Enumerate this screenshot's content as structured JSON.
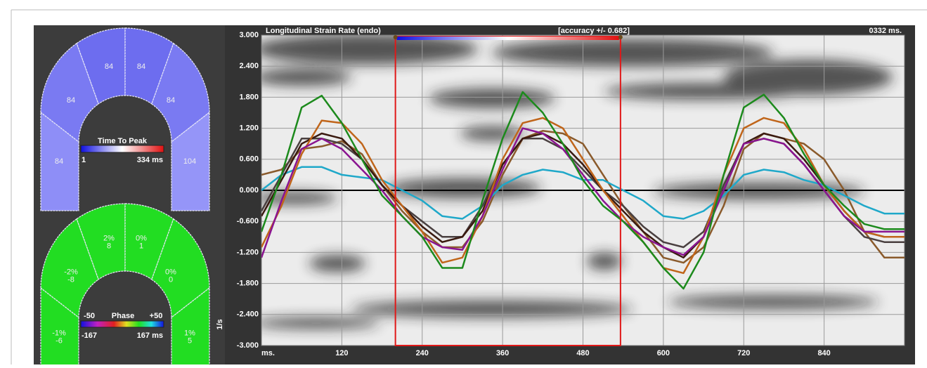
{
  "chart_data": {
    "type": "line",
    "title": "Longitudinal Strain Rate (endo)",
    "annotation": "[accuracy +/- 0.682]",
    "time": "0332 ms.",
    "y_label": "1/s",
    "x": [
      0,
      30,
      60,
      90,
      120,
      150,
      180,
      210,
      240,
      270,
      300,
      330,
      360,
      390,
      420,
      450,
      480,
      510,
      540,
      570,
      600,
      630,
      660,
      690,
      720,
      750,
      780,
      810,
      840,
      870,
      900,
      930,
      960
    ],
    "series": [
      {
        "color": "#8a5a2b",
        "values": [
          0.3,
          0.4,
          0.8,
          0.85,
          0.95,
          0.7,
          0.1,
          -0.4,
          -0.8,
          -1.1,
          -1.1,
          -0.6,
          0.3,
          1.0,
          1.15,
          1.1,
          0.9,
          0.3,
          -0.3,
          -0.8,
          -1.3,
          -1.4,
          -1.1,
          -0.3,
          0.8,
          1.1,
          1.0,
          0.9,
          0.6,
          0.0,
          -0.8,
          -1.3,
          -1.3
        ]
      },
      {
        "color": "#1fa8c9",
        "values": [
          0.0,
          0.3,
          0.45,
          0.45,
          0.3,
          0.25,
          0.2,
          0.0,
          -0.2,
          -0.5,
          -0.55,
          -0.3,
          0.1,
          0.3,
          0.4,
          0.35,
          0.2,
          0.2,
          0.0,
          -0.2,
          -0.5,
          -0.55,
          -0.4,
          -0.1,
          0.3,
          0.4,
          0.35,
          0.2,
          0.1,
          -0.1,
          -0.3,
          -0.45,
          -0.45
        ]
      },
      {
        "color": "#4a4040",
        "values": [
          -0.4,
          0.3,
          1.0,
          1.0,
          0.9,
          0.6,
          0.1,
          -0.3,
          -0.6,
          -0.9,
          -0.9,
          -0.3,
          0.5,
          1.0,
          1.0,
          0.8,
          0.4,
          0.0,
          -0.3,
          -0.7,
          -1.0,
          -1.1,
          -0.8,
          0.1,
          0.9,
          1.0,
          0.9,
          0.5,
          0.0,
          -0.5,
          -0.9,
          -1.0,
          -1.0
        ]
      },
      {
        "color": "#3a1a10",
        "values": [
          -0.5,
          0.2,
          0.9,
          1.1,
          1.0,
          0.6,
          0.1,
          -0.3,
          -0.7,
          -1.0,
          -0.9,
          -0.4,
          0.5,
          1.0,
          1.1,
          0.9,
          0.5,
          0.0,
          -0.4,
          -0.8,
          -1.1,
          -1.3,
          -0.9,
          0.0,
          0.9,
          1.1,
          1.0,
          0.6,
          0.1,
          -0.4,
          -0.8,
          -0.9,
          -0.9
        ]
      },
      {
        "color": "#c0651a",
        "values": [
          -1.1,
          -0.3,
          0.7,
          1.35,
          1.3,
          0.9,
          0.2,
          -0.3,
          -0.8,
          -1.4,
          -1.3,
          -0.5,
          0.6,
          1.3,
          1.4,
          1.2,
          0.6,
          0.0,
          -0.5,
          -1.0,
          -1.5,
          -1.6,
          -0.9,
          0.3,
          1.2,
          1.4,
          1.3,
          0.8,
          0.1,
          -0.4,
          -0.8,
          -0.9,
          -0.9
        ]
      },
      {
        "color": "#8a1490",
        "values": [
          -1.3,
          -0.2,
          0.8,
          1.0,
          0.8,
          0.4,
          0.0,
          -0.5,
          -0.9,
          -1.1,
          -1.15,
          -0.5,
          0.4,
          1.2,
          1.1,
          0.8,
          0.3,
          -0.2,
          -0.6,
          -0.9,
          -1.1,
          -1.25,
          -0.9,
          0.0,
          0.9,
          1.0,
          0.9,
          0.5,
          0.0,
          -0.5,
          -0.8,
          -0.8,
          -0.8
        ]
      },
      {
        "color": "#1c8a1c",
        "values": [
          -0.8,
          0.3,
          1.6,
          1.83,
          1.3,
          0.6,
          -0.1,
          -0.5,
          -0.9,
          -1.5,
          -1.5,
          -0.2,
          1.0,
          1.9,
          1.5,
          0.9,
          0.2,
          -0.3,
          -0.6,
          -1.0,
          -1.5,
          -1.9,
          -1.2,
          0.3,
          1.6,
          1.85,
          1.4,
          0.7,
          0.1,
          -0.3,
          -0.65,
          -0.75,
          -0.75
        ]
      }
    ],
    "xlim": [
      0,
      960
    ],
    "xticks": [
      {
        "value": 0,
        "label": "ms."
      },
      120,
      240,
      360,
      480,
      600,
      720,
      840
    ],
    "ylim": [
      -3,
      3
    ],
    "yticks": [
      {
        "value": 3,
        "label": "3.000"
      },
      {
        "value": 2.4,
        "label": "2.400"
      },
      {
        "value": 1.8,
        "label": "1.800"
      },
      {
        "value": 1.2,
        "label": "1.200"
      },
      {
        "value": 0.6,
        "label": "0.600"
      },
      {
        "value": 0,
        "label": "0.000"
      },
      {
        "value": -0.6,
        "label": "-0.600"
      },
      {
        "value": -1.2,
        "label": "-1.200"
      },
      {
        "value": -1.8,
        "label": "-1.800"
      },
      {
        "value": -2.4,
        "label": "-2.400"
      },
      {
        "value": -3,
        "label": "-3.000"
      }
    ],
    "grid": true,
    "highlight_range": [
      200,
      536
    ]
  },
  "panels": [
    {
      "legend_title": "Time To Peak",
      "min_label": "1",
      "max_label": "334 ms",
      "segments": [
        [
          "84"
        ],
        [
          "84"
        ],
        [
          "84"
        ],
        [
          "84"
        ],
        [
          "84"
        ],
        [
          "104"
        ]
      ]
    },
    {
      "legend_left": "-50",
      "legend_title": "Phase",
      "legend_right": "+50",
      "min_label": "-167",
      "max_label": "167 ms",
      "segments": [
        [
          "-1%",
          "-6"
        ],
        [
          "-2%",
          "-8"
        ],
        [
          "2%",
          "8"
        ],
        [
          "0%",
          "1"
        ],
        [
          "0%",
          "0"
        ],
        [
          "1%",
          "5"
        ]
      ]
    }
  ]
}
